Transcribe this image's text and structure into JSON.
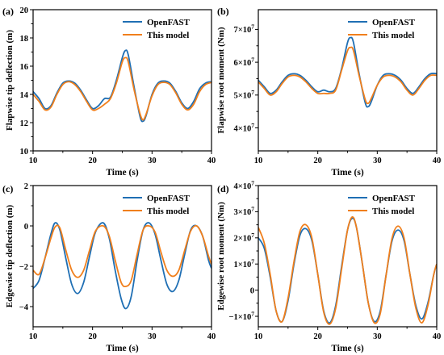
{
  "colors": {
    "openfast": "#1f6fb4",
    "this_model": "#f07f1c"
  },
  "chart_data": [
    {
      "type": "line",
      "panel_label": "(a)",
      "xlabel": "Time (s)",
      "ylabel": "Flapwise tip deflection (m)",
      "xlim": [
        10,
        40
      ],
      "ylim": [
        10,
        20
      ],
      "xticks": [
        10,
        20,
        30,
        40
      ],
      "xtick_labels": [
        "10",
        "20",
        "30",
        "40"
      ],
      "yticks": [
        10,
        12,
        14,
        16,
        18,
        20
      ],
      "ytick_labels": [
        "10",
        "12",
        "14",
        "16",
        "18",
        "20"
      ],
      "legend": "top-right",
      "grid": false,
      "series": [
        {
          "name": "OpenFAST",
          "color": "#1f6fb4",
          "x": [
            10,
            11,
            12,
            13,
            14,
            15,
            16,
            17,
            18,
            19,
            20,
            21,
            22,
            23,
            24,
            25,
            25.5,
            26,
            27,
            28,
            28.5,
            29,
            30,
            31,
            32,
            33,
            34,
            35,
            36,
            37,
            38,
            39,
            40
          ],
          "y": [
            14.2,
            13.7,
            13.0,
            13.2,
            14.1,
            14.8,
            14.95,
            14.8,
            14.3,
            13.6,
            13.0,
            13.2,
            13.7,
            13.8,
            15.0,
            16.6,
            17.1,
            16.8,
            14.5,
            12.4,
            12.1,
            12.5,
            14.0,
            14.8,
            14.95,
            14.8,
            14.2,
            13.4,
            13.0,
            13.5,
            14.4,
            14.8,
            14.9
          ]
        },
        {
          "name": "This model",
          "color": "#f07f1c",
          "x": [
            10,
            11,
            12,
            13,
            14,
            15,
            16,
            17,
            18,
            19,
            20,
            21,
            22,
            23,
            24,
            25,
            25.5,
            26,
            27,
            28,
            28.5,
            29,
            30,
            31,
            32,
            33,
            34,
            35,
            36,
            37,
            38,
            39,
            40
          ],
          "y": [
            14.0,
            13.5,
            12.9,
            13.1,
            14.0,
            14.7,
            14.9,
            14.7,
            14.2,
            13.5,
            12.9,
            13.0,
            13.3,
            13.7,
            14.8,
            16.3,
            16.6,
            16.3,
            14.3,
            12.6,
            12.2,
            12.6,
            13.9,
            14.7,
            14.85,
            14.7,
            14.1,
            13.3,
            12.9,
            13.3,
            14.2,
            14.7,
            14.85
          ]
        }
      ]
    },
    {
      "type": "line",
      "panel_label": "(b)",
      "xlabel": "Time (s)",
      "ylabel": "Flapwise root moment (Nm)",
      "xlim": [
        10,
        40
      ],
      "ylim": [
        33000000.0,
        76000000.0
      ],
      "xticks": [
        10,
        20,
        30,
        40
      ],
      "xtick_labels": [
        "10",
        "20",
        "30",
        "40"
      ],
      "yticks": [
        40000000.0,
        50000000.0,
        60000000.0,
        70000000.0
      ],
      "ytick_labels": [
        {
          "mantissa": "4×10",
          "exp": "7"
        },
        {
          "mantissa": "5×10",
          "exp": "7"
        },
        {
          "mantissa": "6×10",
          "exp": "7"
        },
        {
          "mantissa": "7×10",
          "exp": "7"
        }
      ],
      "legend": "top-right",
      "grid": false,
      "series": [
        {
          "name": "OpenFAST",
          "color": "#1f6fb4",
          "x": [
            10,
            11,
            12,
            13,
            14,
            15,
            16,
            17,
            18,
            19,
            20,
            21,
            22,
            23,
            24,
            25,
            25.5,
            26,
            27,
            28,
            28.5,
            29,
            30,
            31,
            32,
            33,
            34,
            35,
            36,
            37,
            38,
            39,
            40
          ],
          "y": [
            54500000.0,
            52500000.0,
            50500000.0,
            51500000.0,
            54000000.0,
            56000000.0,
            56500000.0,
            56000000.0,
            54500000.0,
            52500000.0,
            51000000.0,
            51500000.0,
            51000000.0,
            52000000.0,
            58000000.0,
            66000000.0,
            67500000.0,
            66000000.0,
            56000000.0,
            47500000.0,
            46500000.0,
            48000000.0,
            53000000.0,
            56000000.0,
            56500000.0,
            56000000.0,
            54500000.0,
            52000000.0,
            50500000.0,
            52500000.0,
            55000000.0,
            56500000.0,
            56500000.0
          ]
        },
        {
          "name": "This model",
          "color": "#f07f1c",
          "x": [
            10,
            11,
            12,
            13,
            14,
            15,
            16,
            17,
            18,
            19,
            20,
            21,
            22,
            23,
            24,
            25,
            25.5,
            26,
            27,
            28,
            28.5,
            29,
            30,
            31,
            32,
            33,
            34,
            35,
            36,
            37,
            38,
            39,
            40
          ],
          "y": [
            54000000.0,
            52000000.0,
            50000000.0,
            51000000.0,
            53500000.0,
            55500000.0,
            56000000.0,
            55500000.0,
            54000000.0,
            52000000.0,
            50500000.0,
            50500000.0,
            50500000.0,
            51500000.0,
            57500000.0,
            63500000.0,
            64500000.0,
            63500000.0,
            55500000.0,
            48500000.0,
            47500000.0,
            49000000.0,
            53000000.0,
            55500000.0,
            56000000.0,
            55500000.0,
            54000000.0,
            51500000.0,
            50000000.0,
            52000000.0,
            54500000.0,
            56000000.0,
            56000000.0
          ]
        }
      ]
    },
    {
      "type": "line",
      "panel_label": "(c)",
      "xlabel": "Time (s)",
      "ylabel": "Edgewise tip deflection (m)",
      "xlim": [
        10,
        40
      ],
      "ylim": [
        -5,
        2
      ],
      "xticks": [
        10,
        20,
        30,
        40
      ],
      "xtick_labels": [
        "10",
        "20",
        "30",
        "40"
      ],
      "yticks": [
        -4,
        -2,
        0,
        2
      ],
      "ytick_labels": [
        "−4",
        "−2",
        "0",
        "2"
      ],
      "legend": "top-right",
      "grid": false,
      "series": [
        {
          "name": "OpenFAST",
          "color": "#1f6fb4",
          "x": [
            10,
            11,
            12,
            13,
            13.7,
            14.5,
            15.5,
            16.5,
            17.5,
            18.5,
            19.5,
            20.5,
            21.8,
            22.8,
            23.8,
            24.8,
            25.6,
            26.5,
            27.5,
            28.5,
            29.5,
            30.5,
            31.5,
            32.5,
            33.5,
            34.5,
            35.5,
            36.5,
            37.5,
            38.5,
            39.5,
            40
          ],
          "y": [
            -3.1,
            -2.7,
            -1.6,
            -0.4,
            0.15,
            -0.2,
            -1.6,
            -2.9,
            -3.35,
            -2.8,
            -1.5,
            -0.3,
            0.15,
            -0.6,
            -2.2,
            -3.6,
            -4.1,
            -3.5,
            -1.7,
            -0.2,
            0.15,
            -0.4,
            -1.7,
            -2.9,
            -3.25,
            -2.7,
            -1.4,
            -0.2,
            0.0,
            -0.5,
            -1.7,
            -2.1
          ]
        },
        {
          "name": "This model",
          "color": "#f07f1c",
          "x": [
            10,
            11,
            12,
            13,
            13.7,
            14.5,
            15.5,
            16.5,
            17.5,
            18.5,
            19.5,
            20.5,
            21.8,
            22.8,
            23.8,
            24.8,
            25.6,
            26.5,
            27.5,
            28.5,
            29.5,
            30.5,
            31.5,
            32.5,
            33.5,
            34.5,
            35.5,
            36.5,
            37.5,
            38.5,
            39.5,
            40
          ],
          "y": [
            -2.2,
            -2.4,
            -1.6,
            -0.6,
            -0.05,
            -0.1,
            -1.2,
            -2.2,
            -2.55,
            -2.2,
            -1.2,
            -0.25,
            0.0,
            -0.5,
            -1.7,
            -2.8,
            -3.0,
            -2.7,
            -1.4,
            -0.2,
            0.0,
            -0.3,
            -1.3,
            -2.2,
            -2.5,
            -2.2,
            -1.2,
            -0.25,
            0.0,
            -0.5,
            -1.5,
            -1.9
          ]
        }
      ]
    },
    {
      "type": "line",
      "panel_label": "(d)",
      "xlabel": "Time (s)",
      "ylabel": "Edgewise root moment (Nm)",
      "xlim": [
        10,
        40
      ],
      "ylim": [
        -14000000.0,
        40000000.0
      ],
      "xticks": [
        10,
        20,
        30,
        40
      ],
      "xtick_labels": [
        "10",
        "20",
        "30",
        "40"
      ],
      "yticks": [
        -10000000.0,
        0,
        10000000.0,
        20000000.0,
        30000000.0,
        40000000.0
      ],
      "ytick_labels": [
        {
          "mantissa": "−1×10",
          "exp": "7"
        },
        {
          "mantissa": "0",
          "exp": ""
        },
        {
          "mantissa": "1×10",
          "exp": "7"
        },
        {
          "mantissa": "2×10",
          "exp": "7"
        },
        {
          "mantissa": "3×10",
          "exp": "7"
        },
        {
          "mantissa": "4×10",
          "exp": "7"
        }
      ],
      "legend": "top-right",
      "grid": false,
      "series": [
        {
          "name": "OpenFAST",
          "color": "#1f6fb4",
          "x": [
            10,
            11,
            12,
            13,
            14,
            15,
            16,
            17,
            18,
            19,
            20,
            21,
            22,
            23,
            24,
            25,
            25.8,
            26.5,
            27.5,
            28.5,
            29.5,
            30.5,
            31.5,
            32.5,
            33.5,
            34.5,
            35.5,
            36.5,
            37.5,
            38.5,
            39.5,
            40
          ],
          "y": [
            20000000.0,
            16000000.0,
            5000000.0,
            -8000000.0,
            -12000000.0,
            -4000000.0,
            10000000.0,
            21000000.0,
            23500000.0,
            19000000.0,
            6000000.0,
            -8000000.0,
            -12500000.0,
            -6000000.0,
            9000000.0,
            23000000.0,
            27500000.0,
            24000000.0,
            10000000.0,
            -5000000.0,
            -12000000.0,
            -8000000.0,
            6000000.0,
            19000000.0,
            23000000.0,
            19000000.0,
            6000000.0,
            -6000000.0,
            -11000000.0,
            -5000000.0,
            6000000.0,
            10000000.0
          ]
        },
        {
          "name": "This model",
          "color": "#f07f1c",
          "x": [
            10,
            11,
            12,
            13,
            14,
            15,
            16,
            17,
            18,
            19,
            20,
            21,
            22,
            23,
            24,
            25,
            25.8,
            26.5,
            27.5,
            28.5,
            29.5,
            30.5,
            31.5,
            32.5,
            33.5,
            34.5,
            35.5,
            36.5,
            37.5,
            38.5,
            39.5,
            40
          ],
          "y": [
            24000000.0,
            18000000.0,
            6000000.0,
            -8000000.0,
            -12000000.0,
            -3000000.0,
            11000000.0,
            22500000.0,
            25000000.0,
            20000000.0,
            6000000.0,
            -8500000.0,
            -13000000.0,
            -7000000.0,
            8000000.0,
            23000000.0,
            28000000.0,
            24000000.0,
            10000000.0,
            -5000000.0,
            -12500000.0,
            -9000000.0,
            6000000.0,
            20000000.0,
            24500000.0,
            20000000.0,
            6000000.0,
            -7000000.0,
            -12500000.0,
            -6000000.0,
            6000000.0,
            10000000.0
          ]
        }
      ]
    }
  ]
}
